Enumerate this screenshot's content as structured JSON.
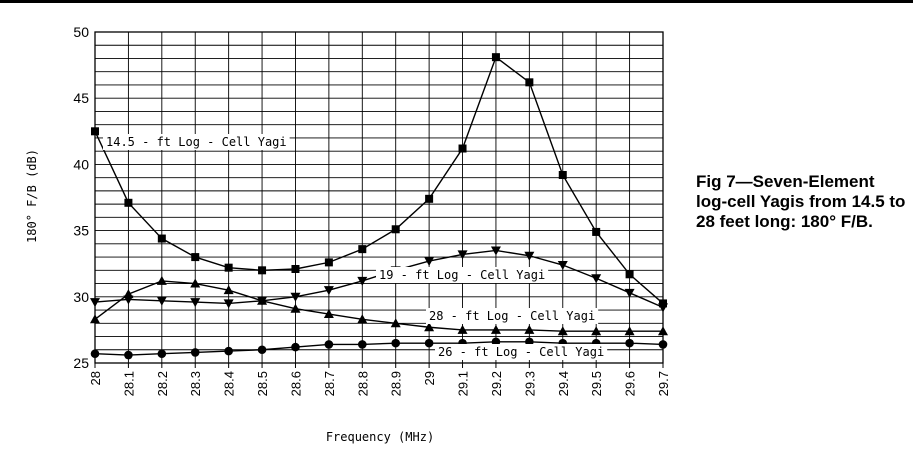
{
  "caption": "Fig 7—Seven-Element log-cell Yagis from 14.5 to 28 feet long: 180° F/B.",
  "chart_data": {
    "type": "line",
    "title": "",
    "xlabel": "Frequency (MHz)",
    "ylabel": "180° F/B (dB)",
    "x": [
      28,
      28.1,
      28.2,
      28.3,
      28.4,
      28.5,
      28.6,
      28.7,
      28.8,
      28.9,
      29,
      29.1,
      29.2,
      29.3,
      29.4,
      29.5,
      29.6,
      29.7
    ],
    "x_tick_labels": [
      "28",
      "28.1",
      "28.2",
      "28.3",
      "28.4",
      "28.5",
      "28.6",
      "28.7",
      "28.8",
      "28.9",
      "29",
      "29.1",
      "29.2",
      "29.3",
      "29.4",
      "29.5",
      "29.6",
      "29.7"
    ],
    "xlim": [
      28,
      29.7
    ],
    "ylim": [
      25,
      50
    ],
    "y_ticks": [
      25,
      30,
      35,
      40,
      45,
      50
    ],
    "grid": true,
    "series": [
      {
        "name": "14.5 - ft Log - Cell Yagi",
        "marker": "square",
        "values": [
          42.5,
          37.1,
          34.4,
          33.0,
          32.2,
          32.0,
          32.1,
          32.6,
          33.6,
          35.1,
          37.4,
          41.2,
          48.1,
          46.2,
          39.2,
          34.9,
          31.7,
          29.5
        ]
      },
      {
        "name": "19 - ft Log - Cell Yagi",
        "marker": "triangle-down",
        "values": [
          29.6,
          29.8,
          29.7,
          29.6,
          29.5,
          29.7,
          30.0,
          30.5,
          31.2,
          32.0,
          32.7,
          33.2,
          33.5,
          33.1,
          32.4,
          31.4,
          30.3,
          29.2
        ]
      },
      {
        "name": "28 - ft Log - Cell Yagi",
        "marker": "triangle-up",
        "values": [
          28.3,
          30.2,
          31.2,
          31.0,
          30.5,
          29.7,
          29.1,
          28.7,
          28.3,
          28.0,
          27.7,
          27.5,
          27.5,
          27.5,
          27.4,
          27.4,
          27.4,
          27.4
        ]
      },
      {
        "name": "26 - ft Log - Cell Yagi",
        "marker": "circle",
        "values": [
          25.7,
          25.6,
          25.7,
          25.8,
          25.9,
          26.0,
          26.2,
          26.4,
          26.4,
          26.5,
          26.5,
          26.5,
          26.6,
          26.6,
          26.5,
          26.5,
          26.5,
          26.4
        ]
      }
    ]
  }
}
